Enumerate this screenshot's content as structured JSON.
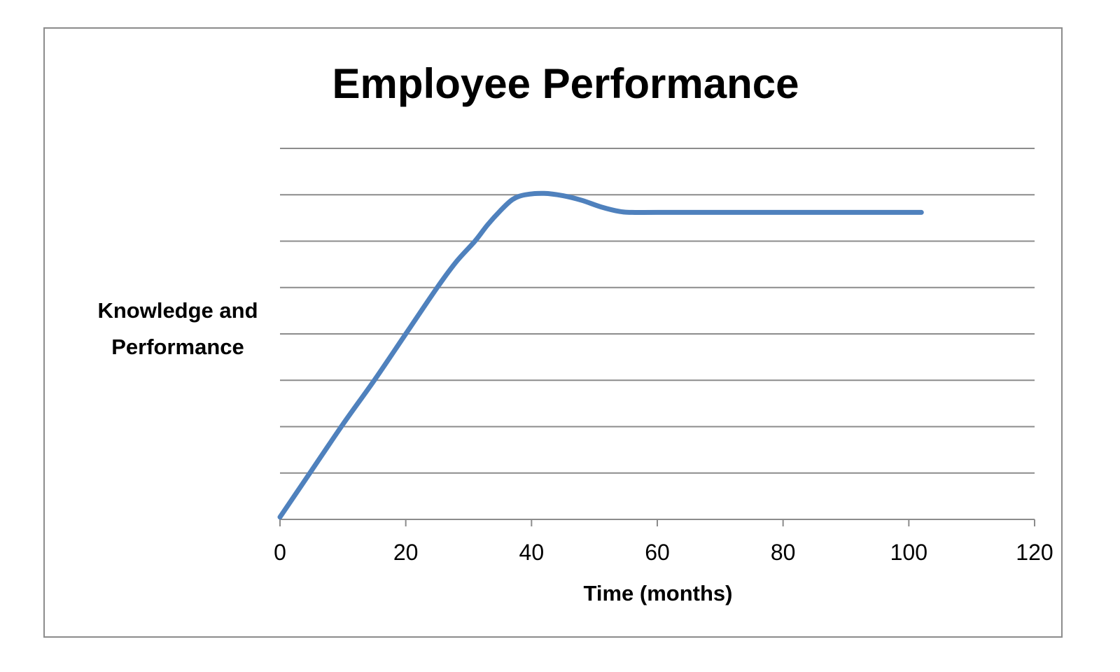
{
  "chart_data": {
    "type": "line",
    "title": "Employee Performance",
    "xlabel": "Time (months)",
    "ylabel": "Knowledge and Performance",
    "xlim": [
      0,
      120
    ],
    "ylim": [
      0,
      8
    ],
    "xticks": [
      "0",
      "20",
      "40",
      "60",
      "80",
      "100",
      "120"
    ],
    "xtick_values": [
      0,
      20,
      40,
      60,
      80,
      100,
      120
    ],
    "y_tick_labels_shown": false,
    "grid": "horizontal",
    "legend": "none",
    "series": [
      {
        "color": "#4f81bd",
        "x": [
          0,
          5,
          10,
          15,
          20,
          25,
          28,
          31,
          33,
          35,
          37,
          39,
          42,
          45,
          48,
          51,
          54,
          56,
          60,
          70,
          80,
          90,
          100,
          102
        ],
        "y": [
          0.05,
          1.05,
          2.05,
          3.0,
          4.0,
          5.0,
          5.55,
          6.0,
          6.35,
          6.65,
          6.9,
          7.0,
          7.03,
          6.98,
          6.88,
          6.74,
          6.64,
          6.62,
          6.62,
          6.62,
          6.62,
          6.62,
          6.62,
          6.62
        ]
      }
    ]
  }
}
